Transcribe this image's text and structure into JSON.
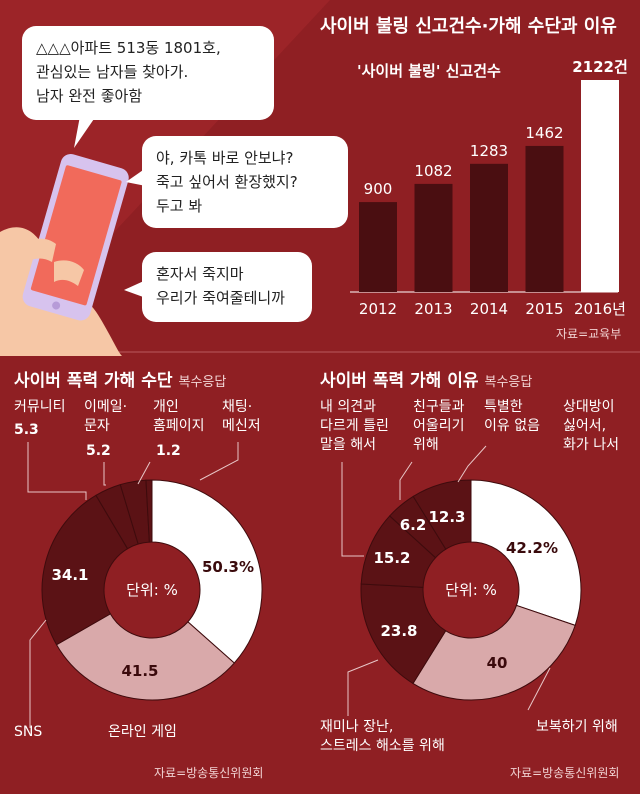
{
  "bubbles": [
    {
      "lines": [
        "△△△아파트 513동 1801호,",
        "관심있는 남자들 찾아가.",
        "남자 완전 좋아함"
      ]
    },
    {
      "lines": [
        "야, 카톡 바로 안보냐?",
        "죽고 싶어서 환장했지?",
        "두고 봐"
      ]
    },
    {
      "lines": [
        "혼자서 죽지마",
        "우리가 죽여줄테니까"
      ]
    }
  ],
  "header": {
    "title": "사이버 불링 신고건수·가해 수단과 이유"
  },
  "colors": {
    "background": "#8f1f23",
    "dark": "#5b1215",
    "pink": "#d9a9aa",
    "white": "#ffffff",
    "bar_dark": "#4a0e11"
  },
  "chart_data": [
    {
      "type": "bar",
      "title": "'사이버 불링' 신고건수",
      "categories": [
        "2012",
        "2013",
        "2014",
        "2015",
        "2016년"
      ],
      "values": [
        900,
        1082,
        1283,
        1462,
        2122
      ],
      "value_labels": [
        "900",
        "1082",
        "1283",
        "1462",
        "2122건"
      ],
      "highlight_index": 4,
      "ylim": [
        0,
        2122
      ],
      "source": "자료=교육부"
    },
    {
      "type": "pie",
      "title": "사이버 폭력 가해 수단",
      "subtitle": "복수응답",
      "center_label": "단위: %",
      "slices": [
        {
          "label": "채팅·메신저",
          "value": 50.3,
          "value_label": "50.3%",
          "color": "#ffffff"
        },
        {
          "label": "온라인 게임",
          "value": 41.5,
          "value_label": "41.5",
          "color": "#d9a9aa"
        },
        {
          "label": "SNS",
          "value": 34.1,
          "value_label": "34.1",
          "color": "#5b1215"
        },
        {
          "label": "커뮤니티",
          "value": 5.3,
          "value_label": "5.3",
          "color": "#5b1215"
        },
        {
          "label": "이메일·문자",
          "value": 5.2,
          "value_label": "5.2",
          "color": "#5b1215"
        },
        {
          "label": "개인 홈페이지",
          "value": 1.2,
          "value_label": "1.2",
          "color": "#5b1215"
        }
      ],
      "source": "자료=방송통신위원회"
    },
    {
      "type": "pie",
      "title": "사이버 폭력 가해 이유",
      "subtitle": "복수응답",
      "center_label": "단위: %",
      "slices": [
        {
          "label": "상대방이 싫어서, 화가 나서",
          "value": 42.2,
          "value_label": "42.2%",
          "color": "#ffffff"
        },
        {
          "label": "보복하기 위해",
          "value": 40,
          "value_label": "40",
          "color": "#d9a9aa"
        },
        {
          "label": "재미나 장난, 스트레스 해소를 위해",
          "value": 23.8,
          "value_label": "23.8",
          "color": "#5b1215"
        },
        {
          "label": "내 의견과 다르게 틀린 말을 해서",
          "value": 15.2,
          "value_label": "15.2",
          "color": "#5b1215"
        },
        {
          "label": "친구들과 어울리기 위해",
          "value": 6.2,
          "value_label": "6.2",
          "color": "#5b1215"
        },
        {
          "label": "특별한 이유 없음",
          "value": 12.3,
          "value_label": "12.3",
          "color": "#5b1215"
        }
      ],
      "source": "자료=방송통신위원회"
    }
  ]
}
